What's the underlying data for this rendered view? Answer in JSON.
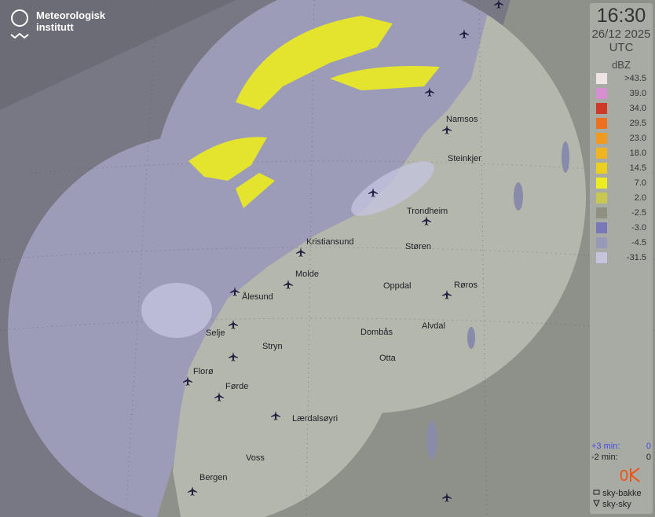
{
  "brand": {
    "name_line1": "Meteorologisk",
    "name_line2": "institutt"
  },
  "panel": {
    "time": "16:30",
    "date": "26/12 2025",
    "timezone": "UTC",
    "unit": "dBZ"
  },
  "legend": [
    {
      "label": ">43.5",
      "color": "#efe4e4"
    },
    {
      "label": "39.0",
      "color": "#d690d0"
    },
    {
      "label": "34.0",
      "color": "#d03828"
    },
    {
      "label": "29.5",
      "color": "#ec7020"
    },
    {
      "label": "23.0",
      "color": "#f09a20"
    },
    {
      "label": "18.0",
      "color": "#f0b420"
    },
    {
      "label": "14.5",
      "color": "#ecd020"
    },
    {
      "label": "7.0",
      "color": "#ecec20"
    },
    {
      "label": "2.0",
      "color": "#c8c850"
    },
    {
      "label": "-2.5",
      "color": "#909080"
    },
    {
      "label": "-3.0",
      "color": "#7878b8"
    },
    {
      "label": "-4.5",
      "color": "#9898b8"
    },
    {
      "label": "-31.5",
      "color": "#c4c4dc"
    }
  ],
  "stats": {
    "plus_label": "+3 min:",
    "plus_value": "0",
    "minus_label": "-2 min:",
    "minus_value": "0",
    "lightning_count": "0"
  },
  "markers": {
    "ground": "sky-bakke",
    "cloud": "sky-sky"
  },
  "cities": [
    "Namsos",
    "Steinkjer",
    "Trondheim",
    "Kristiansund",
    "Støren",
    "Molde",
    "Oppdal",
    "Røros",
    "Ålesund",
    "Alvdal",
    "Selje",
    "Dombås",
    "Stryn",
    "Otta",
    "Florø",
    "Førde",
    "Lærdalsøyri",
    "Voss",
    "Bergen"
  ]
}
